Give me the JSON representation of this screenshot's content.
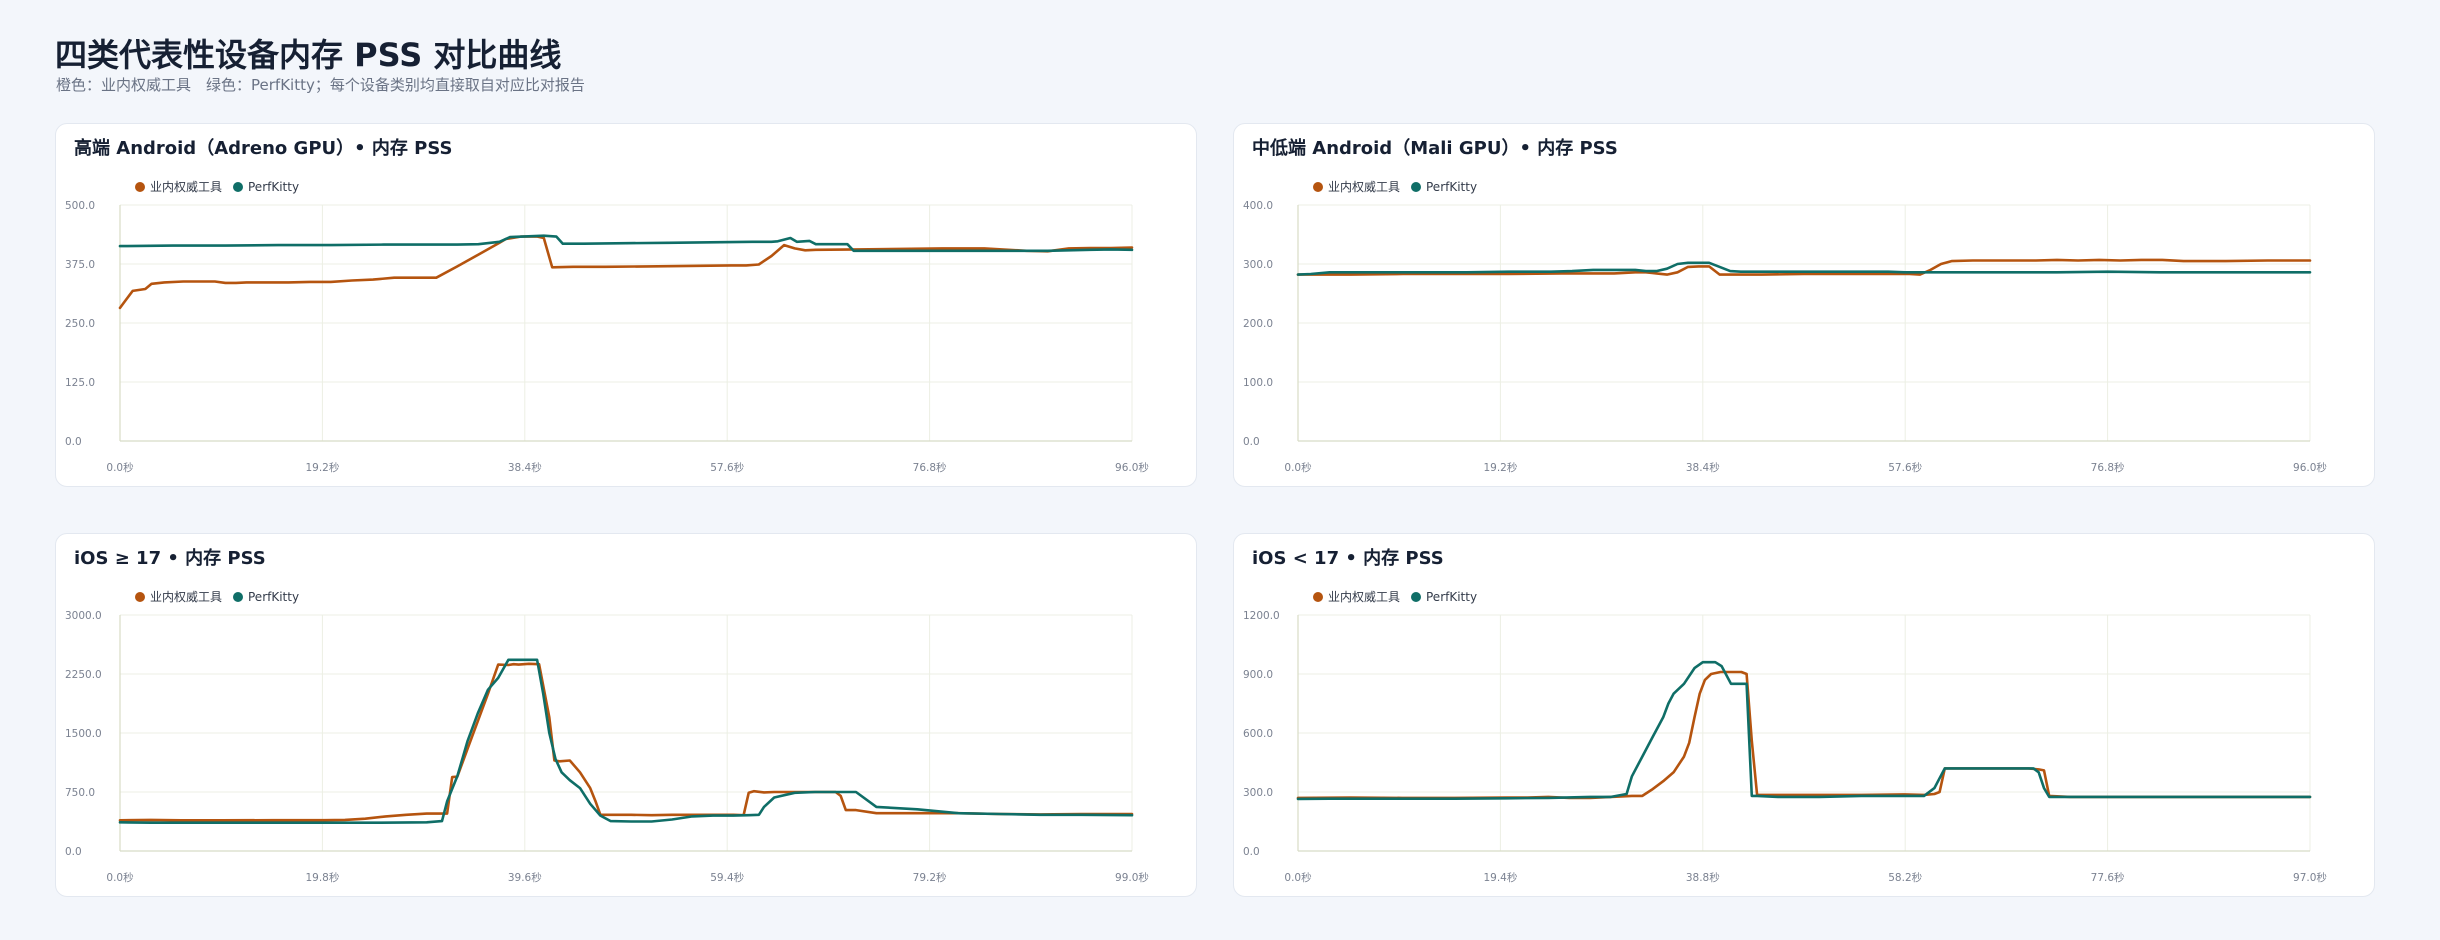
{
  "page": {
    "title": "四类代表性设备内存 PSS 对比曲线",
    "subtitle": "橙色：业内权威工具　绿色：PerfKitty；每个设备类别均直接取自对应比对报告"
  },
  "colors": {
    "industry": "#b5540f",
    "perfkitty": "#0f6e67",
    "grid": "#ecefe4",
    "axis": "#d8dcc6"
  },
  "legend": {
    "industry": "业内权威工具",
    "perfkitty": "PerfKitty"
  },
  "chart_data": [
    {
      "type": "line",
      "title": "高端 Android（Adreno GPU）• 内存 PSS",
      "xlim": [
        0,
        96
      ],
      "ylim": [
        0,
        500
      ],
      "x_ticks": [
        "0.0秒",
        "19.2秒",
        "38.4秒",
        "57.6秒",
        "76.8秒",
        "96.0秒"
      ],
      "y_ticks": [
        "0.0",
        "125.0",
        "250.0",
        "375.0",
        "500.0"
      ],
      "series": [
        {
          "name": "业内权威工具",
          "x": [
            0,
            0.6,
            1.2,
            2.4,
            3,
            4.2,
            6,
            8,
            9,
            10,
            11,
            12,
            14,
            16,
            18,
            20,
            22,
            24,
            26,
            28,
            30,
            32,
            34,
            36,
            36.6,
            38,
            39.6,
            40.2,
            41,
            43,
            46,
            50,
            54,
            58,
            59.4,
            60.6,
            61.8,
            63,
            64,
            65,
            66,
            70,
            74,
            78,
            82,
            86,
            88,
            90,
            92,
            94,
            96
          ],
          "y": [
            282,
            300,
            318,
            322,
            333,
            336,
            338,
            338,
            338,
            335,
            335,
            336,
            336,
            336,
            337,
            337,
            340,
            342,
            346,
            346,
            346,
            370,
            395,
            420,
            428,
            433,
            433,
            430,
            368,
            369,
            369,
            370,
            371,
            372,
            372,
            374,
            392,
            415,
            408,
            404,
            405,
            406,
            407,
            408,
            408,
            403,
            402,
            408,
            409,
            409,
            410
          ]
        },
        {
          "name": "PerfKitty",
          "x": [
            0,
            5,
            10,
            15,
            20,
            25,
            30,
            32,
            34,
            36,
            37,
            40.2,
            41.4,
            42,
            44,
            48,
            52,
            56,
            60,
            61.8,
            62.4,
            63.6,
            64.2,
            65.4,
            66,
            68,
            69,
            69.6,
            71,
            76,
            80,
            84,
            88,
            90,
            92,
            94,
            96
          ],
          "y": [
            413,
            414,
            414,
            415,
            415,
            416,
            416,
            416,
            417,
            422,
            432,
            435,
            433,
            418,
            418,
            419,
            420,
            421,
            422,
            422,
            423,
            430,
            422,
            424,
            417,
            417,
            417,
            403,
            403,
            403,
            403,
            403,
            403,
            404,
            405,
            406,
            405
          ]
        }
      ]
    },
    {
      "type": "line",
      "title": "中低端 Android（Mali GPU）• 内存 PSS",
      "xlim": [
        0,
        96
      ],
      "ylim": [
        0,
        400
      ],
      "x_ticks": [
        "0.0秒",
        "19.2秒",
        "38.4秒",
        "57.6秒",
        "76.8秒",
        "96.0秒"
      ],
      "y_ticks": [
        "0.0",
        "100.0",
        "200.0",
        "300.0",
        "400.0"
      ],
      "series": [
        {
          "name": "业内权威工具",
          "x": [
            0,
            5,
            10,
            15,
            20,
            25,
            30,
            32,
            33,
            34,
            35,
            36,
            37,
            38,
            39,
            40,
            41,
            44,
            48,
            52,
            56,
            58,
            59,
            60,
            61,
            62,
            64,
            66,
            70,
            72,
            74,
            76,
            78,
            80,
            82,
            84,
            88,
            92,
            96
          ],
          "y": [
            282,
            282,
            283,
            283,
            283,
            284,
            284,
            286,
            286,
            284,
            282,
            286,
            295,
            296,
            296,
            282,
            282,
            282,
            283,
            283,
            283,
            283,
            282,
            290,
            300,
            305,
            306,
            306,
            306,
            307,
            306,
            307,
            306,
            307,
            307,
            305,
            305,
            306,
            306
          ]
        },
        {
          "name": "PerfKitty",
          "x": [
            0,
            1.2,
            3,
            8,
            12,
            16,
            20,
            24,
            26,
            28,
            30,
            32,
            33,
            34,
            35,
            36,
            37,
            38,
            39,
            40,
            41,
            42,
            44,
            48,
            52,
            56,
            57.6,
            60,
            66,
            72,
            76.8,
            82,
            88,
            96
          ],
          "y": [
            282,
            283,
            286,
            286,
            286,
            286,
            287,
            287,
            288,
            290,
            290,
            290,
            288,
            288,
            292,
            300,
            302,
            302,
            302,
            295,
            288,
            287,
            287,
            287,
            287,
            287,
            286,
            286,
            286,
            286,
            287,
            286,
            286,
            286
          ]
        }
      ]
    },
    {
      "type": "line",
      "title": "iOS ≥ 17 • 内存 PSS",
      "xlim": [
        0,
        99
      ],
      "ylim": [
        0,
        3000
      ],
      "x_ticks": [
        "0.0秒",
        "19.8秒",
        "39.6秒",
        "59.4秒",
        "79.2秒",
        "99.0秒"
      ],
      "y_ticks": [
        "0.0",
        "750.0",
        "1500.0",
        "2250.0",
        "3000.0"
      ],
      "series": [
        {
          "name": "业内权威工具",
          "x": [
            0,
            3,
            6,
            10,
            15,
            20,
            22,
            24,
            26,
            28,
            30,
            32,
            32.5,
            33,
            34,
            35,
            36,
            37,
            38,
            38.5,
            39,
            40,
            41,
            42,
            42.5,
            43,
            44,
            45,
            46,
            46.5,
            47,
            48,
            50,
            52,
            54,
            56,
            58,
            60,
            61,
            61.5,
            62,
            63,
            64,
            66,
            68,
            70,
            70.5,
            71,
            72,
            74,
            78,
            82,
            86,
            90,
            94,
            99
          ],
          "y": [
            390,
            395,
            390,
            390,
            392,
            392,
            395,
            410,
            440,
            460,
            475,
            475,
            940,
            945,
            1300,
            1650,
            2000,
            2370,
            2365,
            2375,
            2370,
            2380,
            2375,
            1700,
            1150,
            1140,
            1150,
            1000,
            800,
            640,
            460,
            460,
            460,
            455,
            460,
            460,
            460,
            460,
            455,
            740,
            760,
            745,
            750,
            750,
            750,
            750,
            700,
            520,
            520,
            480,
            480,
            480,
            470,
            465,
            470,
            470
          ]
        },
        {
          "name": "PerfKitty",
          "x": [
            0,
            3,
            6,
            10,
            15,
            20,
            25,
            30,
            31.5,
            32,
            33,
            34,
            35,
            36,
            37,
            38,
            38.5,
            39,
            39.6,
            40.2,
            40.8,
            41.4,
            42,
            42.6,
            43.2,
            44,
            45,
            46,
            47,
            48,
            50,
            52,
            54,
            56,
            58,
            60,
            61.5,
            62.5,
            63,
            64,
            66,
            68,
            70,
            71,
            72,
            74,
            78,
            82,
            86,
            90,
            94,
            99
          ],
          "y": [
            365,
            360,
            360,
            360,
            360,
            360,
            360,
            365,
            380,
            630,
            950,
            1400,
            1750,
            2050,
            2200,
            2430,
            2430,
            2430,
            2430,
            2430,
            2430,
            2000,
            1500,
            1170,
            1000,
            900,
            800,
            600,
            450,
            380,
            375,
            375,
            400,
            440,
            450,
            450,
            455,
            460,
            560,
            680,
            740,
            750,
            750,
            750,
            750,
            560,
            530,
            480,
            470,
            460,
            460,
            455
          ]
        }
      ]
    },
    {
      "type": "line",
      "title": "iOS < 17 • 内存 PSS",
      "xlim": [
        0,
        97
      ],
      "ylim": [
        0,
        1200
      ],
      "x_ticks": [
        "0.0秒",
        "19.4秒",
        "38.8秒",
        "58.2秒",
        "77.6秒",
        "97.0秒"
      ],
      "y_ticks": [
        "0.0",
        "300.0",
        "600.0",
        "900.0",
        "1200.0"
      ],
      "series": [
        {
          "name": "业内权威工具",
          "x": [
            0,
            5,
            10,
            15,
            20,
            22,
            24,
            26,
            28,
            30,
            32,
            33,
            34,
            35,
            36,
            37,
            37.5,
            38,
            38.5,
            39,
            39.6,
            40.5,
            41.5,
            42,
            42.5,
            43,
            43.5,
            44,
            46,
            50,
            54,
            58,
            60,
            61,
            61.5,
            62,
            63,
            64,
            66,
            68,
            70,
            71,
            71.5,
            72,
            74,
            78,
            82,
            86,
            90,
            94,
            97
          ],
          "y": [
            270,
            272,
            270,
            270,
            272,
            272,
            275,
            270,
            270,
            275,
            280,
            280,
            315,
            355,
            400,
            480,
            550,
            680,
            800,
            870,
            900,
            910,
            910,
            910,
            910,
            900,
            560,
            285,
            285,
            285,
            285,
            288,
            285,
            290,
            300,
            420,
            420,
            420,
            420,
            420,
            420,
            415,
            410,
            280,
            275,
            275,
            275,
            275,
            275,
            275,
            275
          ]
        },
        {
          "name": "PerfKitty",
          "x": [
            0,
            3,
            5,
            10,
            15,
            20,
            24,
            28,
            30,
            31.5,
            32,
            33,
            34,
            35,
            35.5,
            36,
            37,
            38,
            38.8,
            39.5,
            40,
            40.6,
            41.5,
            42.1,
            42.5,
            43,
            43.5,
            44,
            46,
            50,
            54,
            58,
            59,
            60,
            61,
            61.5,
            62,
            64,
            66,
            68,
            70,
            70.5,
            71,
            71.5,
            72,
            74,
            78,
            82,
            86,
            90,
            94,
            97
          ],
          "y": [
            265,
            266,
            266,
            266,
            266,
            268,
            270,
            275,
            275,
            290,
            380,
            480,
            580,
            680,
            750,
            800,
            850,
            930,
            960,
            960,
            960,
            940,
            850,
            850,
            850,
            850,
            280,
            280,
            275,
            275,
            280,
            280,
            280,
            280,
            320,
            370,
            420,
            420,
            420,
            420,
            420,
            420,
            400,
            320,
            275,
            275,
            275,
            275,
            275,
            275,
            275,
            275
          ]
        }
      ]
    }
  ]
}
